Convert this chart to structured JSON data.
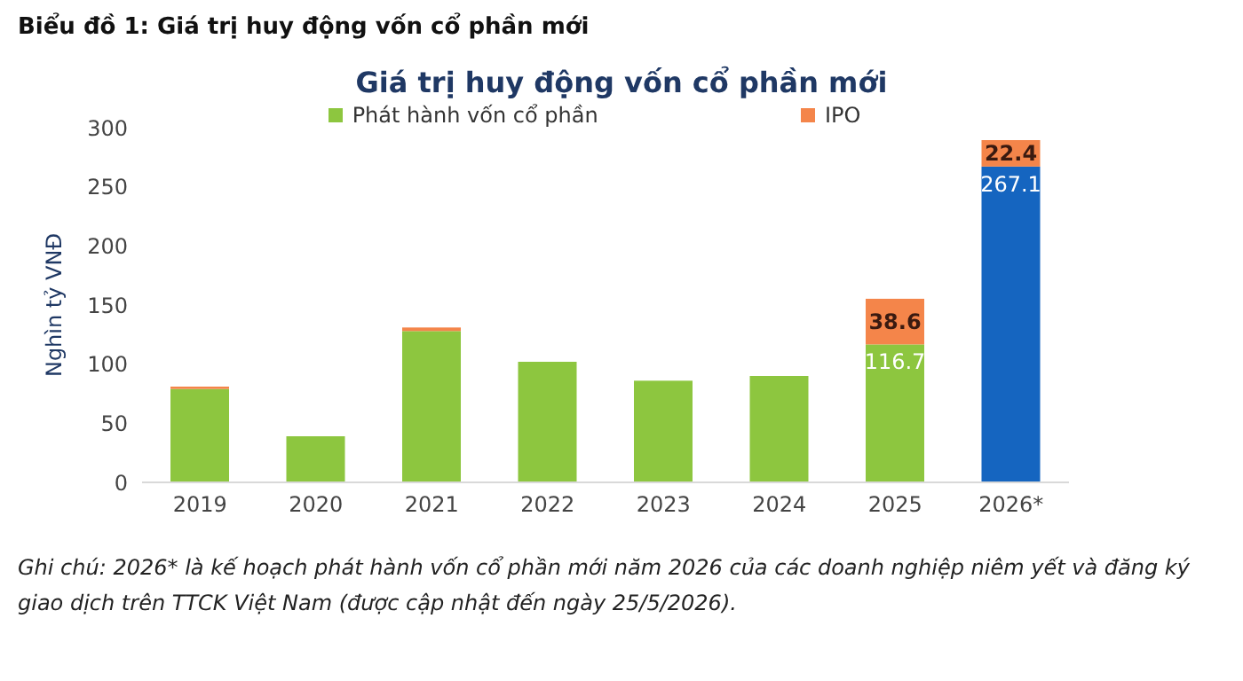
{
  "chart_data": {
    "type": "bar",
    "title": "Biểu đồ 1: Giá trị huy động vốn cổ phần mới",
    "subtitle": "Giá trị huy động vốn cổ phần mới",
    "ylabel": "Nghìn tỷ VNĐ",
    "categories": [
      "2019",
      "2020",
      "2021",
      "2022",
      "2023",
      "2024",
      "2025",
      "2026*"
    ],
    "stacked": true,
    "series": [
      {
        "name": "Phát hành vốn cổ phần",
        "color": "#8dc63f",
        "colors": [
          "#8dc63f",
          "#8dc63f",
          "#8dc63f",
          "#8dc63f",
          "#8dc63f",
          "#8dc63f",
          "#8dc63f",
          "#1565c0"
        ],
        "values": [
          79,
          39,
          128,
          102,
          86,
          90,
          116.7,
          267.1
        ],
        "value_labels": [
          null,
          null,
          null,
          null,
          null,
          null,
          "116.7",
          "267.1"
        ]
      },
      {
        "name": "IPO",
        "color": "#f4854a",
        "values": [
          2,
          0,
          3,
          0,
          0,
          0,
          38.6,
          22.4
        ],
        "value_labels": [
          null,
          null,
          null,
          null,
          null,
          null,
          "38.6",
          "22.4"
        ]
      }
    ],
    "ylim": [
      0,
      300
    ],
    "yticks": [
      0,
      50,
      100,
      150,
      200,
      250,
      300
    ],
    "grid": false,
    "legend": "top",
    "annotations": [
      "Ghi chú: 2026* là kế hoạch phát hành vốn cổ phần mới năm 2026 của các doanh nghiệp niêm yết và đăng ký giao dịch trên TTCK Việt Nam (được cập nhật đến ngày 25/5/2026)."
    ]
  }
}
